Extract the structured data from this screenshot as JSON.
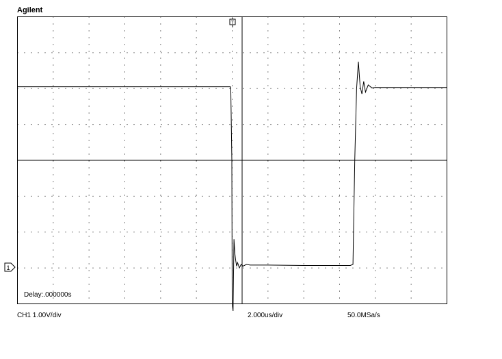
{
  "brand": "Agilent",
  "channel_marker": "1",
  "readouts": {
    "delay": "Delay:.000000s",
    "channel_scale": "CH1 1.00V/div",
    "timebase": "2.000us/div",
    "sample_rate": "50.0MSa/s"
  },
  "display": {
    "h_divisions": 12,
    "v_divisions": 8,
    "time_per_div_us": 2.0,
    "volts_per_div": 1.0,
    "grid": true,
    "colors": {
      "background": "#ffffff",
      "grid": "#000000",
      "trace": "#000000"
    }
  },
  "chart_data": {
    "type": "line",
    "title": "",
    "xlabel": "",
    "ylabel": "",
    "xlim": [
      -12.0,
      12.0
    ],
    "ylim": [
      -4.0,
      4.0
    ],
    "series": [
      {
        "x": [
          -12.0,
          -0.12,
          -0.08,
          -0.02,
          0.0,
          0.05,
          0.1,
          0.15,
          0.2,
          0.25,
          0.3,
          0.4,
          0.5,
          0.6,
          0.8,
          1.0,
          2.0,
          4.0,
          6.0,
          6.6,
          6.75,
          6.85,
          6.95,
          7.05,
          7.15,
          7.25,
          7.35,
          7.45,
          7.6,
          7.8,
          8.0,
          9.0,
          12.0
        ],
        "y": [
          2.05,
          2.05,
          2.04,
          0.0,
          -4.0,
          -4.2,
          -2.2,
          -2.6,
          -2.8,
          -2.95,
          -2.85,
          -3.0,
          -2.9,
          -2.95,
          -2.9,
          -2.92,
          -2.92,
          -2.93,
          -2.93,
          -2.93,
          -2.9,
          0.0,
          2.0,
          2.75,
          2.05,
          1.85,
          2.2,
          1.9,
          2.1,
          2.02,
          2.03,
          2.03,
          2.03
        ]
      }
    ]
  }
}
